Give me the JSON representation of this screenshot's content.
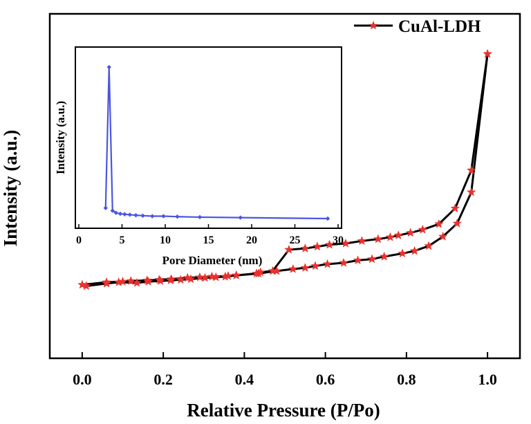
{
  "chart_data": [
    {
      "type": "line",
      "title": "",
      "xlabel": "Relative Pressure (P/Po)",
      "ylabel": "Intensity (a.u.)",
      "xlim": [
        -0.08,
        1.08
      ],
      "ylim": [
        0,
        1
      ],
      "x_ticks": [
        0.0,
        0.2,
        0.4,
        0.6,
        0.8,
        1.0
      ],
      "x_tick_labels": [
        "0.0",
        "0.2",
        "0.4",
        "0.6",
        "0.8",
        "1.0"
      ],
      "y_ticks_shown": false,
      "legend": {
        "position": "top-right",
        "entries": [
          "CuAl-LDH"
        ]
      },
      "series": [
        {
          "name": "CuAl-LDH",
          "branch": "adsorption",
          "line_color": "#000000",
          "marker_color": "#e8322e",
          "marker": "star",
          "x": [
            0.01,
            0.06,
            0.09,
            0.135,
            0.163,
            0.193,
            0.218,
            0.243,
            0.268,
            0.303,
            0.33,
            0.353,
            0.38,
            0.435,
            0.48,
            0.52,
            0.55,
            0.575,
            0.605,
            0.645,
            0.68,
            0.715,
            0.745,
            0.79,
            0.82,
            0.855,
            0.89,
            0.925,
            0.96,
            1.0
          ],
          "y": [
            0.1331,
            0.1425,
            0.1472,
            0.1449,
            0.1495,
            0.1519,
            0.1542,
            0.1565,
            0.1589,
            0.1636,
            0.1659,
            0.1682,
            0.1729,
            0.1799,
            0.1893,
            0.1963,
            0.201,
            0.2079,
            0.2149,
            0.2196,
            0.229,
            0.2336,
            0.243,
            0.2547,
            0.264,
            0.2827,
            0.3178,
            0.3668,
            0.4836,
            1.0
          ]
        },
        {
          "name": "CuAl-LDH",
          "branch": "desorption",
          "line_color": "#000000",
          "marker_color": "#e8322e",
          "marker": "star",
          "x": [
            0.0,
            0.06,
            0.1,
            0.12,
            0.16,
            0.19,
            0.22,
            0.26,
            0.29,
            0.32,
            0.36,
            0.38,
            0.43,
            0.44,
            0.47,
            0.51,
            0.55,
            0.58,
            0.61,
            0.65,
            0.69,
            0.73,
            0.76,
            0.78,
            0.81,
            0.84,
            0.88,
            0.92,
            0.96,
            1.0
          ],
          "y": [
            0.1378,
            0.1472,
            0.1495,
            0.1519,
            0.1542,
            0.1565,
            0.1589,
            0.1636,
            0.1659,
            0.1682,
            0.1706,
            0.1729,
            0.1799,
            0.1846,
            0.1893,
            0.2687,
            0.2734,
            0.2804,
            0.2874,
            0.2921,
            0.3014,
            0.3084,
            0.3154,
            0.3224,
            0.3318,
            0.3435,
            0.3645,
            0.4229,
            0.5654,
            1.0
          ]
        }
      ]
    },
    {
      "type": "line",
      "title": "",
      "xlabel": "Pore Diameter (nm)",
      "ylabel": "Intensity (a.u.)",
      "xlim": [
        0,
        30
      ],
      "ylim": [
        0,
        1
      ],
      "x_ticks": [
        0,
        5,
        10,
        15,
        20,
        25,
        30
      ],
      "x_tick_labels": [
        "0",
        "5",
        "10",
        "15",
        "20",
        "25",
        "30"
      ],
      "y_ticks_shown": false,
      "legend": null,
      "series": [
        {
          "line_color": "#4a55e0",
          "marker": "diamond",
          "x": [
            3.1,
            3.5,
            3.9,
            4.3,
            4.8,
            5.3,
            5.9,
            6.6,
            7.4,
            8.5,
            9.8,
            11.4,
            14.0,
            18.7,
            28.8
          ],
          "y": [
            0.0671,
            0.9604,
            0.05,
            0.0366,
            0.0305,
            0.0274,
            0.0244,
            0.0213,
            0.0183,
            0.0152,
            0.0152,
            0.0122,
            0.0091,
            0.0061,
            0.0
          ]
        }
      ]
    }
  ]
}
